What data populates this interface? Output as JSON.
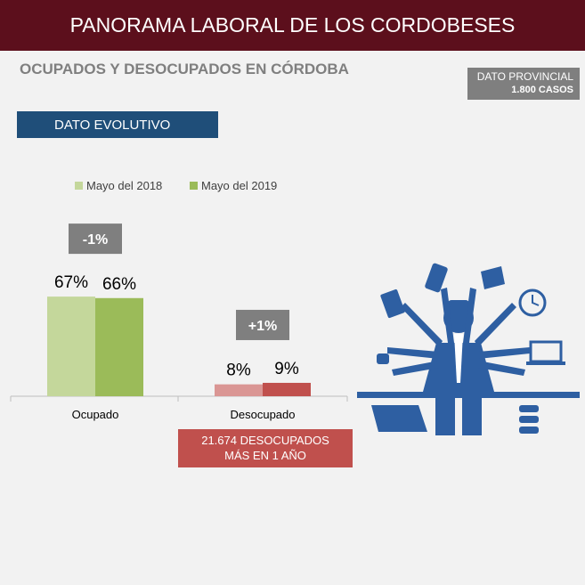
{
  "header": {
    "title": "PANORAMA LABORAL DE LOS CORDOBESES"
  },
  "subtitle": "OCUPADOS Y DESOCUPADOS EN CÓRDOBA",
  "provincial_box": {
    "line1": "DATO PROVINCIAL",
    "line2": "1.800 CASOS"
  },
  "evolutivo_label": "DATO EVOLUTIVO",
  "callout": {
    "line1": "21.674  DESOCUPADOS",
    "line2": "MÁS EN 1 AÑO"
  },
  "colors": {
    "brand": "#5c0f1c",
    "series_2018": "#c4d79b",
    "series_2019": "#9bbb59",
    "desoc_2018": "#da9694",
    "desoc_2019": "#c0504d",
    "change_badge": "#7f7f7f",
    "illustration": "#2e5fa2"
  },
  "chart_data": {
    "type": "bar",
    "categories": [
      "Ocupado",
      "Desocupado"
    ],
    "series": [
      {
        "name": "Mayo del 2018",
        "values": [
          67,
          8
        ],
        "labels": [
          "67%",
          "8%"
        ]
      },
      {
        "name": "Mayo del 2019",
        "values": [
          66,
          9
        ],
        "labels": [
          "66%",
          "9%"
        ]
      }
    ],
    "changes": [
      "-1%",
      "+1%"
    ],
    "ylim": [
      0,
      100
    ],
    "legend_position": "top"
  }
}
